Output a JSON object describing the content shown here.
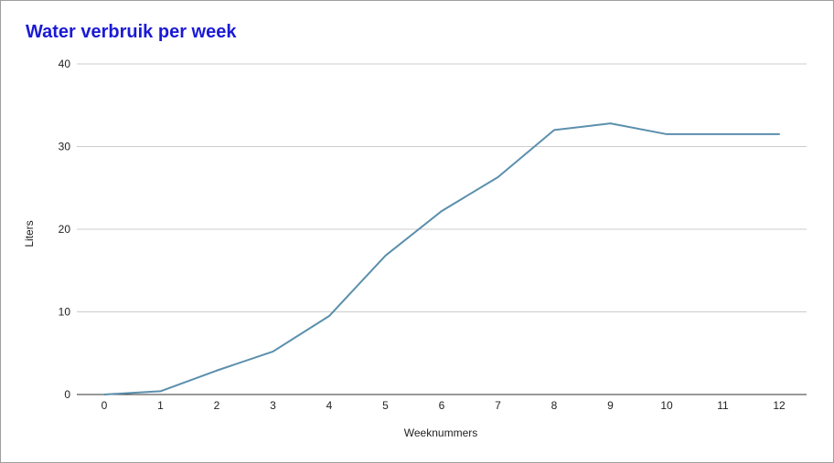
{
  "chart_data": {
    "type": "line",
    "title": "Water verbruik per week",
    "xlabel": "Weeknummers",
    "ylabel": "Liters",
    "x": [
      0,
      1,
      2,
      3,
      4,
      5,
      6,
      7,
      8,
      9,
      10,
      11,
      12
    ],
    "series": [
      {
        "values": [
          0,
          0.4,
          2.9,
          5.2,
          9.5,
          16.8,
          22.2,
          26.3,
          32.0,
          32.8,
          31.5,
          31.5,
          31.5
        ]
      }
    ],
    "xlim": [
      0,
      12
    ],
    "ylim": [
      0,
      40
    ],
    "yticks": [
      "0",
      "10",
      "20",
      "30",
      "40"
    ],
    "xticks": [
      "0",
      "1",
      "2",
      "3",
      "4",
      "5",
      "6",
      "7",
      "8",
      "9",
      "10",
      "11",
      "12"
    ],
    "grid": true,
    "legend": "none",
    "colors": {
      "line": "#5b8fad",
      "title": "#1a1ad6",
      "grid": "#cccccc",
      "axis": "#333333"
    }
  }
}
